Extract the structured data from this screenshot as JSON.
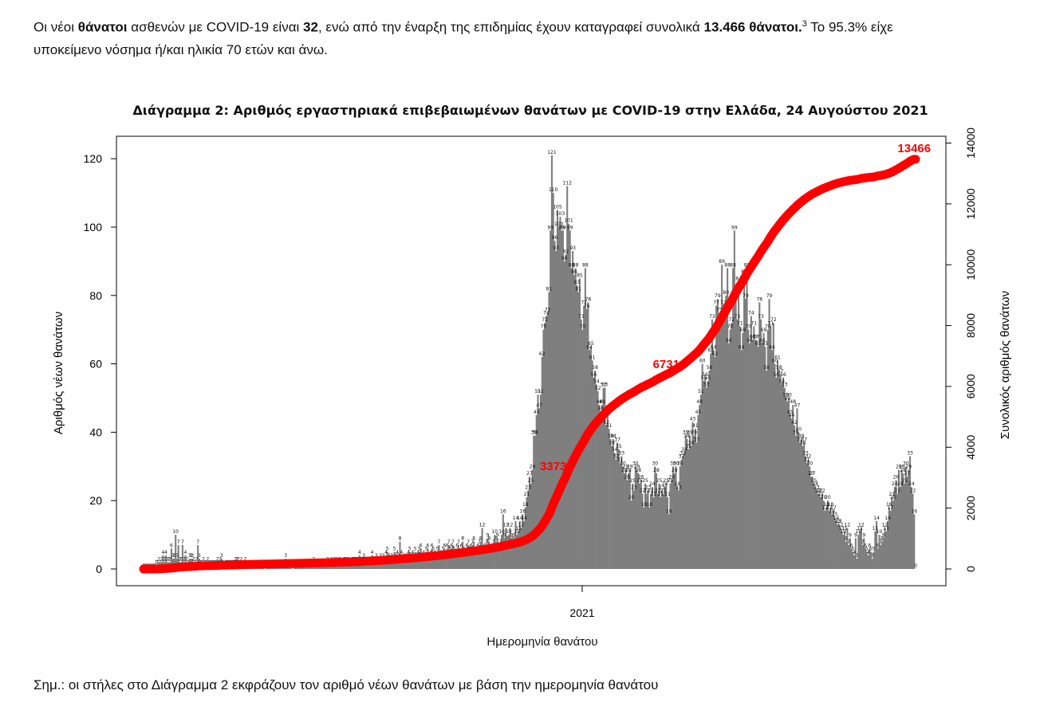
{
  "intro": {
    "p1": "Οι νέοι ",
    "b1": "θάνατοι",
    "p2": " ασθενών με COVID-19 είναι ",
    "b2": "32",
    "p3": ", ενώ από την έναρξη της επιδημίας έχουν καταγραφεί συνολικά ",
    "b3": "13.466 θάνατοι.",
    "sup": "3",
    "p4": "  Το 95.3% είχε",
    "line2": "υποκείμενο νόσημα ή/και ηλικία 70 ετών και άνω."
  },
  "note": "Σημ.: οι στήλες στο Διάγραμμα 2 εκφράζουν τον αριθμό νέων θανάτων με βάση την ημερομηνία θανάτου",
  "chart_data": {
    "type": "bar",
    "title": "Διάγραμμα 2: Αριθμός εργαστηριακά επιβεβαιωμένων θανάτων με COVID-19 στην Ελλάδα, 24 Αυγούστου 2021",
    "xlabel": "Ημερομηνία θανάτου",
    "ylabel": "Αριθμός νέων θανάτων",
    "y2label": "Συνολικός αριθμός θανάτων",
    "x_tick_labels": [
      "2021"
    ],
    "yticks": [
      0,
      20,
      40,
      60,
      80,
      100,
      120
    ],
    "y2ticks": [
      0,
      2000,
      4000,
      6000,
      8000,
      10000,
      12000,
      14000
    ],
    "ylim": [
      0,
      125
    ],
    "y2lim": [
      0,
      14000
    ],
    "bar_color": "#7f7f7f",
    "line_color": "#ff0000",
    "series": [
      {
        "name": "Αριθμός νέων θανάτων",
        "kind": "bar",
        "values": [
          0,
          0,
          0,
          0,
          0,
          0,
          0,
          0,
          0,
          1,
          1,
          2,
          1,
          2,
          4,
          2,
          4,
          2,
          2,
          2,
          6,
          3,
          3,
          10,
          3,
          7,
          2,
          2,
          7,
          2,
          4,
          2,
          1,
          3,
          3,
          3,
          2,
          1,
          2,
          7,
          3,
          1,
          1,
          2,
          1,
          1,
          2,
          1,
          1,
          1,
          1,
          1,
          1,
          2,
          1,
          2,
          3,
          1,
          0,
          1,
          1,
          1,
          1,
          1,
          1,
          1,
          2,
          2,
          2,
          1,
          2,
          1,
          1,
          2,
          1,
          1,
          1,
          1,
          1,
          1,
          1,
          1,
          1,
          1,
          1,
          1,
          1,
          0,
          1,
          1,
          1,
          1,
          1,
          1,
          1,
          1,
          1,
          1,
          1,
          1,
          1,
          1,
          3,
          1,
          1,
          1,
          1,
          0,
          1,
          1,
          1,
          1,
          1,
          1,
          1,
          1,
          1,
          1,
          1,
          1,
          1,
          1,
          2,
          1,
          1,
          1,
          1,
          1,
          1,
          1,
          1,
          1,
          2,
          1,
          1,
          2,
          1,
          2,
          1,
          2,
          1,
          2,
          1,
          1,
          2,
          2,
          1,
          2,
          1,
          1,
          2,
          2,
          2,
          2,
          2,
          4,
          2,
          2,
          3,
          2,
          1,
          2,
          2,
          2,
          4,
          2,
          2,
          3,
          2,
          2,
          3,
          2,
          3,
          2,
          4,
          5,
          3,
          2,
          3,
          2,
          5,
          3,
          4,
          3,
          8,
          4,
          2,
          3,
          2,
          3,
          4,
          5,
          3,
          4,
          2,
          5,
          3,
          4,
          5,
          6,
          3,
          4,
          3,
          5,
          6,
          3,
          4,
          6,
          5,
          4,
          3,
          5,
          7,
          4,
          3,
          5,
          6,
          4,
          6,
          7,
          5,
          6,
          7,
          5,
          4,
          6,
          7,
          4,
          6,
          8,
          5,
          4,
          6,
          7,
          5,
          6,
          7,
          8,
          5,
          4,
          6,
          7,
          8,
          12,
          5,
          6,
          7,
          9,
          8,
          5,
          6,
          7,
          10,
          8,
          9,
          6,
          7,
          10,
          16,
          9,
          12,
          8,
          10,
          12,
          9,
          8,
          9,
          14,
          10,
          11,
          14,
          12,
          16,
          14,
          18,
          21,
          23,
          27,
          25,
          29,
          39,
          39,
          45,
          51,
          47,
          51,
          62,
          70,
          72,
          74,
          75,
          81,
          99,
          121,
          110,
          96,
          93,
          105,
          100,
          103,
          99,
          99,
          90,
          92,
          112,
          101,
          99,
          88,
          93,
          86,
          88,
          83,
          81,
          85,
          73,
          70,
          77,
          88,
          76,
          78,
          64,
          65,
          61,
          56,
          58,
          54,
          52,
          48,
          46,
          48,
          53,
          53,
          42,
          45,
          41,
          38,
          36,
          38,
          34,
          32,
          37,
          35,
          31,
          33,
          30,
          28,
          29,
          26,
          28,
          29,
          20,
          25,
          23,
          30,
          29,
          28,
          25,
          26,
          22,
          18,
          25,
          22,
          23,
          18,
          22,
          24,
          21,
          30,
          28,
          22,
          25,
          21,
          23,
          22,
          24,
          25,
          21,
          16,
          25,
          26,
          30,
          28,
          30,
          24,
          23,
          30,
          32,
          33,
          34,
          39,
          38,
          35,
          39,
          36,
          43,
          39,
          41,
          37,
          45,
          48,
          51,
          60,
          55,
          56,
          53,
          55,
          58,
          63,
          73,
          64,
          62,
          77,
          79,
          75,
          71,
          89,
          77,
          76,
          80,
          88,
          66,
          70,
          72,
          88,
          99,
          80,
          73,
          84,
          71,
          64,
          69,
          86,
          79,
          88,
          70,
          66,
          74,
          67,
          71,
          67,
          67,
          65,
          78,
          73,
          66,
          69,
          65,
          58,
          70,
          79,
          71,
          64,
          72,
          60,
          56,
          61,
          58,
          57,
          54,
          56,
          53,
          50,
          49,
          50,
          45,
          44,
          48,
          42,
          39,
          47,
          40,
          37,
          38,
          36,
          37,
          33,
          31,
          32,
          30,
          27,
          27,
          25,
          24,
          23,
          22,
          22,
          21,
          22,
          20,
          17,
          18,
          20,
          17,
          18,
          16,
          17,
          15,
          14,
          13,
          13,
          12,
          11,
          10,
          11,
          8,
          12,
          7,
          9,
          6,
          5,
          4,
          9,
          3,
          10,
          11,
          12,
          7,
          9,
          6,
          5,
          4,
          6,
          5,
          3,
          5,
          11,
          14,
          6,
          10,
          7,
          8,
          9,
          12,
          11,
          14,
          18,
          17,
          21,
          20,
          24,
          26,
          22,
          29,
          24,
          29,
          28,
          25,
          30,
          27,
          29,
          33,
          24,
          22,
          16,
          0
        ]
      },
      {
        "name": "Συνολικός αριθμός θανάτων",
        "kind": "line",
        "points_label": [
          "3373",
          "6731",
          "13466"
        ]
      }
    ],
    "data_label_threshold": 0
  }
}
